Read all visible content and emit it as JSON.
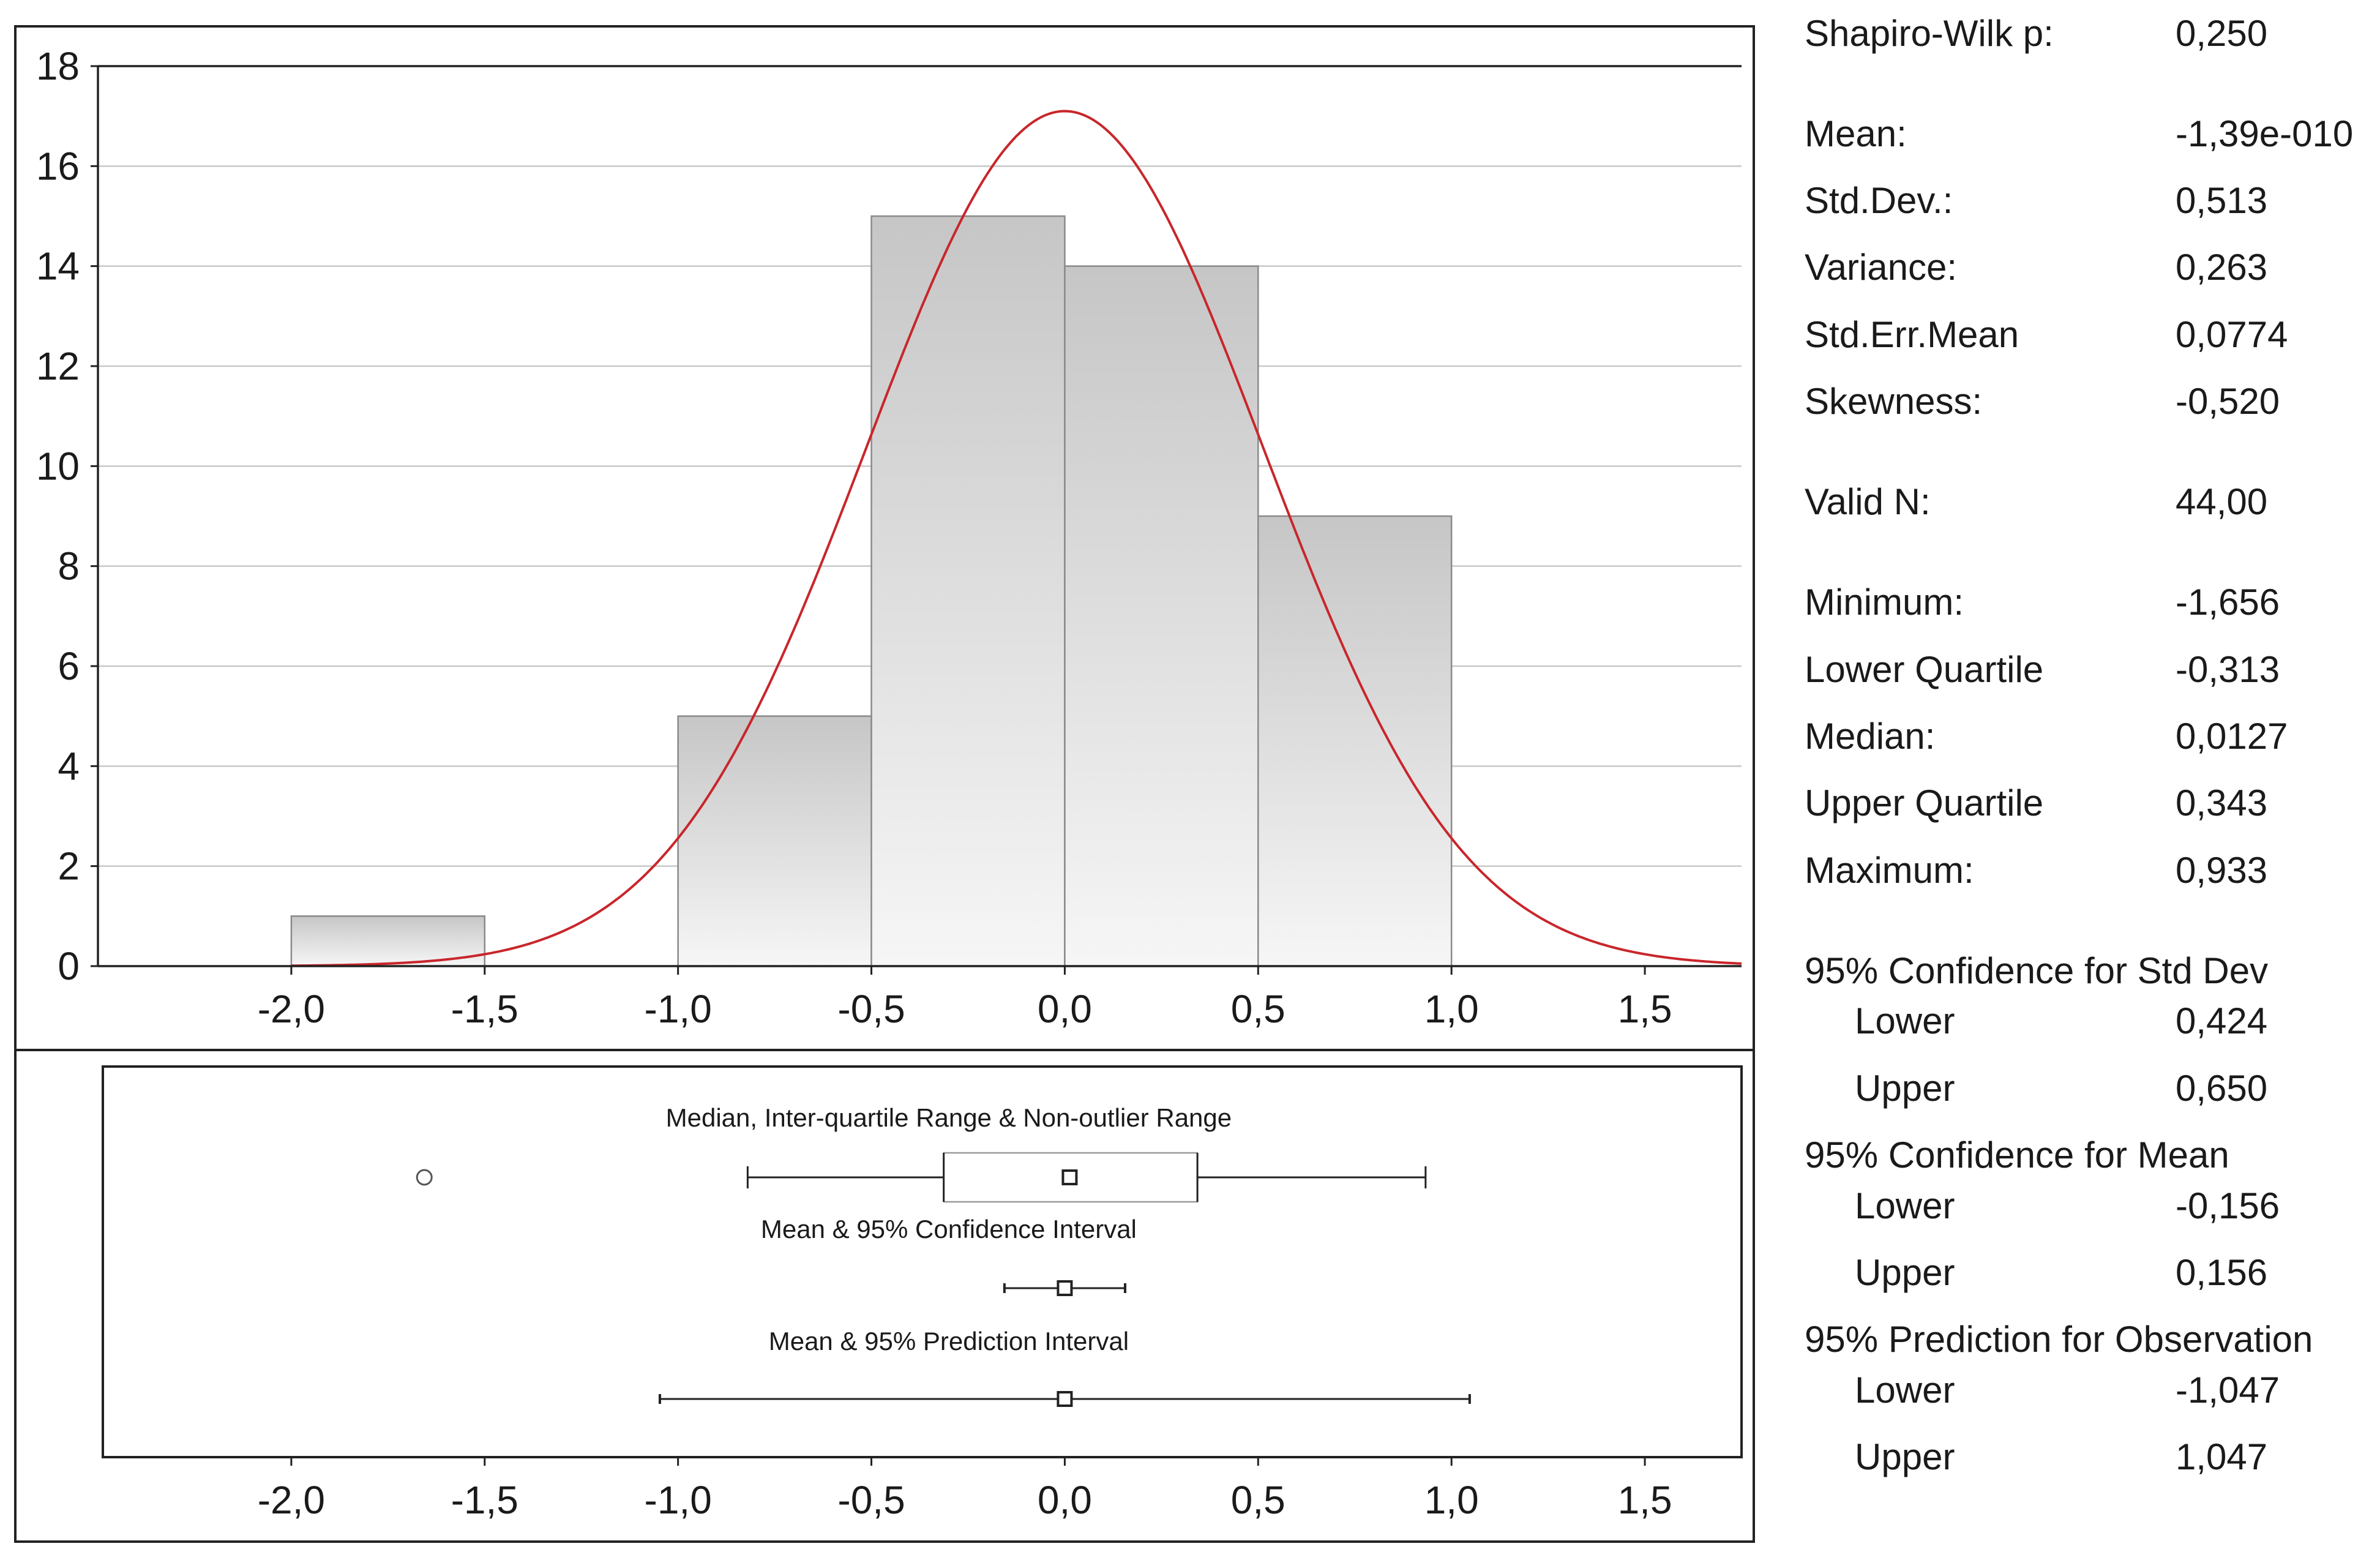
{
  "chart_data": [
    {
      "type": "histogram",
      "bins": [
        {
          "from": -2.0,
          "to": -1.5,
          "count": 1
        },
        {
          "from": -1.5,
          "to": -1.0,
          "count": 0
        },
        {
          "from": -1.0,
          "to": -0.5,
          "count": 5
        },
        {
          "from": -0.5,
          "to": 0.0,
          "count": 15
        },
        {
          "from": 0.0,
          "to": 0.5,
          "count": 14
        },
        {
          "from": 0.5,
          "to": 1.0,
          "count": 9
        }
      ],
      "normal_curve": {
        "mean": 0.0,
        "std": 0.513,
        "peak": 17.1,
        "color": "#c8262b"
      },
      "xlim": [
        -2.5,
        1.75
      ],
      "ylim": [
        0,
        18
      ],
      "yticks": [
        "0",
        "2",
        "4",
        "6",
        "8",
        "10",
        "12",
        "14",
        "16",
        "18"
      ],
      "xticks": [
        {
          "value": -2.0,
          "label": "-2,0"
        },
        {
          "value": -1.5,
          "label": "-1,5"
        },
        {
          "value": -1.0,
          "label": "-1,0"
        },
        {
          "value": -0.5,
          "label": "-0,5"
        },
        {
          "value": 0.0,
          "label": "0,0"
        },
        {
          "value": 0.5,
          "label": "0,5"
        },
        {
          "value": 1.0,
          "label": "1,0"
        },
        {
          "value": 1.5,
          "label": "1,5"
        }
      ],
      "grid": true,
      "bar_color": "#d6d6d6"
    },
    {
      "type": "box",
      "xlim": [
        -2.5,
        1.75
      ],
      "xticks": [
        {
          "value": -2.0,
          "label": "-2,0"
        },
        {
          "value": -1.5,
          "label": "-1,5"
        },
        {
          "value": -1.0,
          "label": "-1,0"
        },
        {
          "value": -0.5,
          "label": "-0,5"
        },
        {
          "value": 0.0,
          "label": "0,0"
        },
        {
          "value": 0.5,
          "label": "0,5"
        },
        {
          "value": 1.0,
          "label": "1,0"
        },
        {
          "value": 1.5,
          "label": "1,5"
        }
      ],
      "rows": [
        {
          "label": "Median, Inter-quartile Range & Non-outlier Range",
          "whisker_low": -0.82,
          "q1": -0.313,
          "median": 0.0127,
          "q3": 0.343,
          "whisker_high": 0.933,
          "outliers": [
            -1.656
          ]
        },
        {
          "label": "Mean & 95% Confidence Interval",
          "low": -0.156,
          "center": 0.0,
          "high": 0.156
        },
        {
          "label": "Mean & 95% Prediction Interval",
          "low": -1.047,
          "center": 0.0,
          "high": 1.047
        }
      ]
    }
  ],
  "stats": {
    "shapiro": {
      "label": "Shapiro-Wilk p:",
      "value": "0,250"
    },
    "mean": {
      "label": "Mean:",
      "value": "-1,39e-010"
    },
    "std_dev": {
      "label": "Std.Dev.:",
      "value": "0,513"
    },
    "variance": {
      "label": "Variance:",
      "value": "0,263"
    },
    "std_err": {
      "label": "Std.Err.Mean",
      "value": "0,0774"
    },
    "skewness": {
      "label": "Skewness:",
      "value": "-0,520"
    },
    "valid_n": {
      "label": "Valid N:",
      "value": "44,00"
    },
    "minimum": {
      "label": "Minimum:",
      "value": "-1,656"
    },
    "lower_quartile": {
      "label": "Lower Quartile",
      "value": "-0,313"
    },
    "median": {
      "label": "Median:",
      "value": "0,0127"
    },
    "upper_quartile": {
      "label": "Upper Quartile",
      "value": "0,343"
    },
    "maximum": {
      "label": "Maximum:",
      "value": "0,933"
    },
    "ci_std_dev": {
      "heading": "95% Confidence for Std Dev",
      "lower": {
        "label": "Lower",
        "value": "0,424"
      },
      "upper": {
        "label": "Upper",
        "value": "0,650"
      }
    },
    "ci_mean": {
      "heading": "95% Confidence for Mean",
      "lower": {
        "label": "Lower",
        "value": "-0,156"
      },
      "upper": {
        "label": "Upper",
        "value": "0,156"
      }
    },
    "pi_obs": {
      "heading": "95% Prediction for Observation",
      "lower": {
        "label": "Lower",
        "value": "-1,047"
      },
      "upper": {
        "label": "Upper",
        "value": "1,047"
      }
    }
  }
}
